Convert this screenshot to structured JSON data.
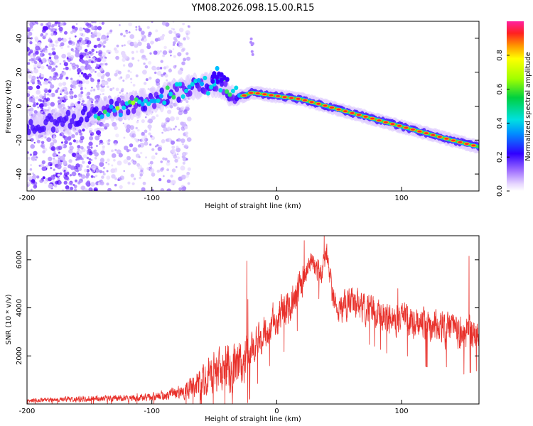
{
  "chart_data": [
    {
      "type": "heatmap",
      "title": "YM08.2026.098.15.00.R15",
      "xlabel": "Height of straight line (km)",
      "ylabel": "Frequency (Hz)",
      "xlim": [
        -200,
        162
      ],
      "ylim": [
        -50,
        50
      ],
      "xticks": [
        "-200",
        "-100",
        "0",
        "100"
      ],
      "yticks": [
        "-40",
        "-20",
        "0",
        "20",
        "40"
      ],
      "ridge_points": [
        {
          "x": -200,
          "y": -13
        },
        {
          "x": -180,
          "y": -10
        },
        {
          "x": -160,
          "y": -7
        },
        {
          "x": -140,
          "y": -3
        },
        {
          "x": -120,
          "y": 0
        },
        {
          "x": -100,
          "y": 3
        },
        {
          "x": -80,
          "y": 8
        },
        {
          "x": -60,
          "y": 12
        },
        {
          "x": -45,
          "y": 13
        },
        {
          "x": -35,
          "y": 6
        },
        {
          "x": -27,
          "y": 6
        },
        {
          "x": -20,
          "y": 8
        },
        {
          "x": 0,
          "y": 6
        },
        {
          "x": 20,
          "y": 4
        },
        {
          "x": 40,
          "y": 0
        },
        {
          "x": 60,
          "y": -4
        },
        {
          "x": 80,
          "y": -8
        },
        {
          "x": 100,
          "y": -12
        },
        {
          "x": 120,
          "y": -16
        },
        {
          "x": 140,
          "y": -20
        },
        {
          "x": 162,
          "y": -24
        }
      ],
      "colorbar": {
        "label": "Normalized spectral amplitude",
        "ticks": [
          "0.0",
          "0.2",
          "0.4",
          "0.6",
          "0.8"
        ],
        "range": [
          0,
          1
        ]
      }
    },
    {
      "type": "line",
      "xlabel": "Height of straight line (km)",
      "ylabel": "SNR (10 * v/v)",
      "xlim": [
        -200,
        162
      ],
      "ylim": [
        0,
        7000
      ],
      "xticks": [
        "-200",
        "-100",
        "0",
        "100"
      ],
      "yticks": [
        "2000",
        "4000",
        "6000"
      ],
      "color": "#e8302a",
      "envelope": {
        "x": [
          -200,
          -150,
          -100,
          -80,
          -60,
          -40,
          -30,
          -20,
          -10,
          0,
          10,
          20,
          25,
          30,
          35,
          40,
          45,
          50,
          60,
          70,
          80,
          90,
          100,
          110,
          120,
          130,
          140,
          150,
          162
        ],
        "mean": [
          150,
          220,
          280,
          420,
          900,
          1500,
          1600,
          2300,
          3000,
          3600,
          4000,
          5000,
          5900,
          5800,
          5400,
          6200,
          4600,
          3900,
          4300,
          4000,
          3800,
          3500,
          3600,
          3400,
          3300,
          3200,
          3100,
          3000,
          3000
        ],
        "amp": [
          120,
          170,
          230,
          350,
          900,
          1700,
          1400,
          1200,
          1000,
          1100,
          1000,
          1000,
          700,
          700,
          700,
          800,
          900,
          900,
          900,
          900,
          900,
          900,
          900,
          1000,
          1100,
          1000,
          1000,
          1100,
          1000
        ]
      },
      "peaks": [
        {
          "x": 22,
          "y": 6800
        },
        {
          "x": 38,
          "y": 7000
        },
        {
          "x": -24,
          "y": 5950
        },
        {
          "x": 154,
          "y": 6150
        },
        {
          "x": 97,
          "y": 4800
        },
        {
          "x": -23,
          "y": 4350
        }
      ]
    }
  ]
}
